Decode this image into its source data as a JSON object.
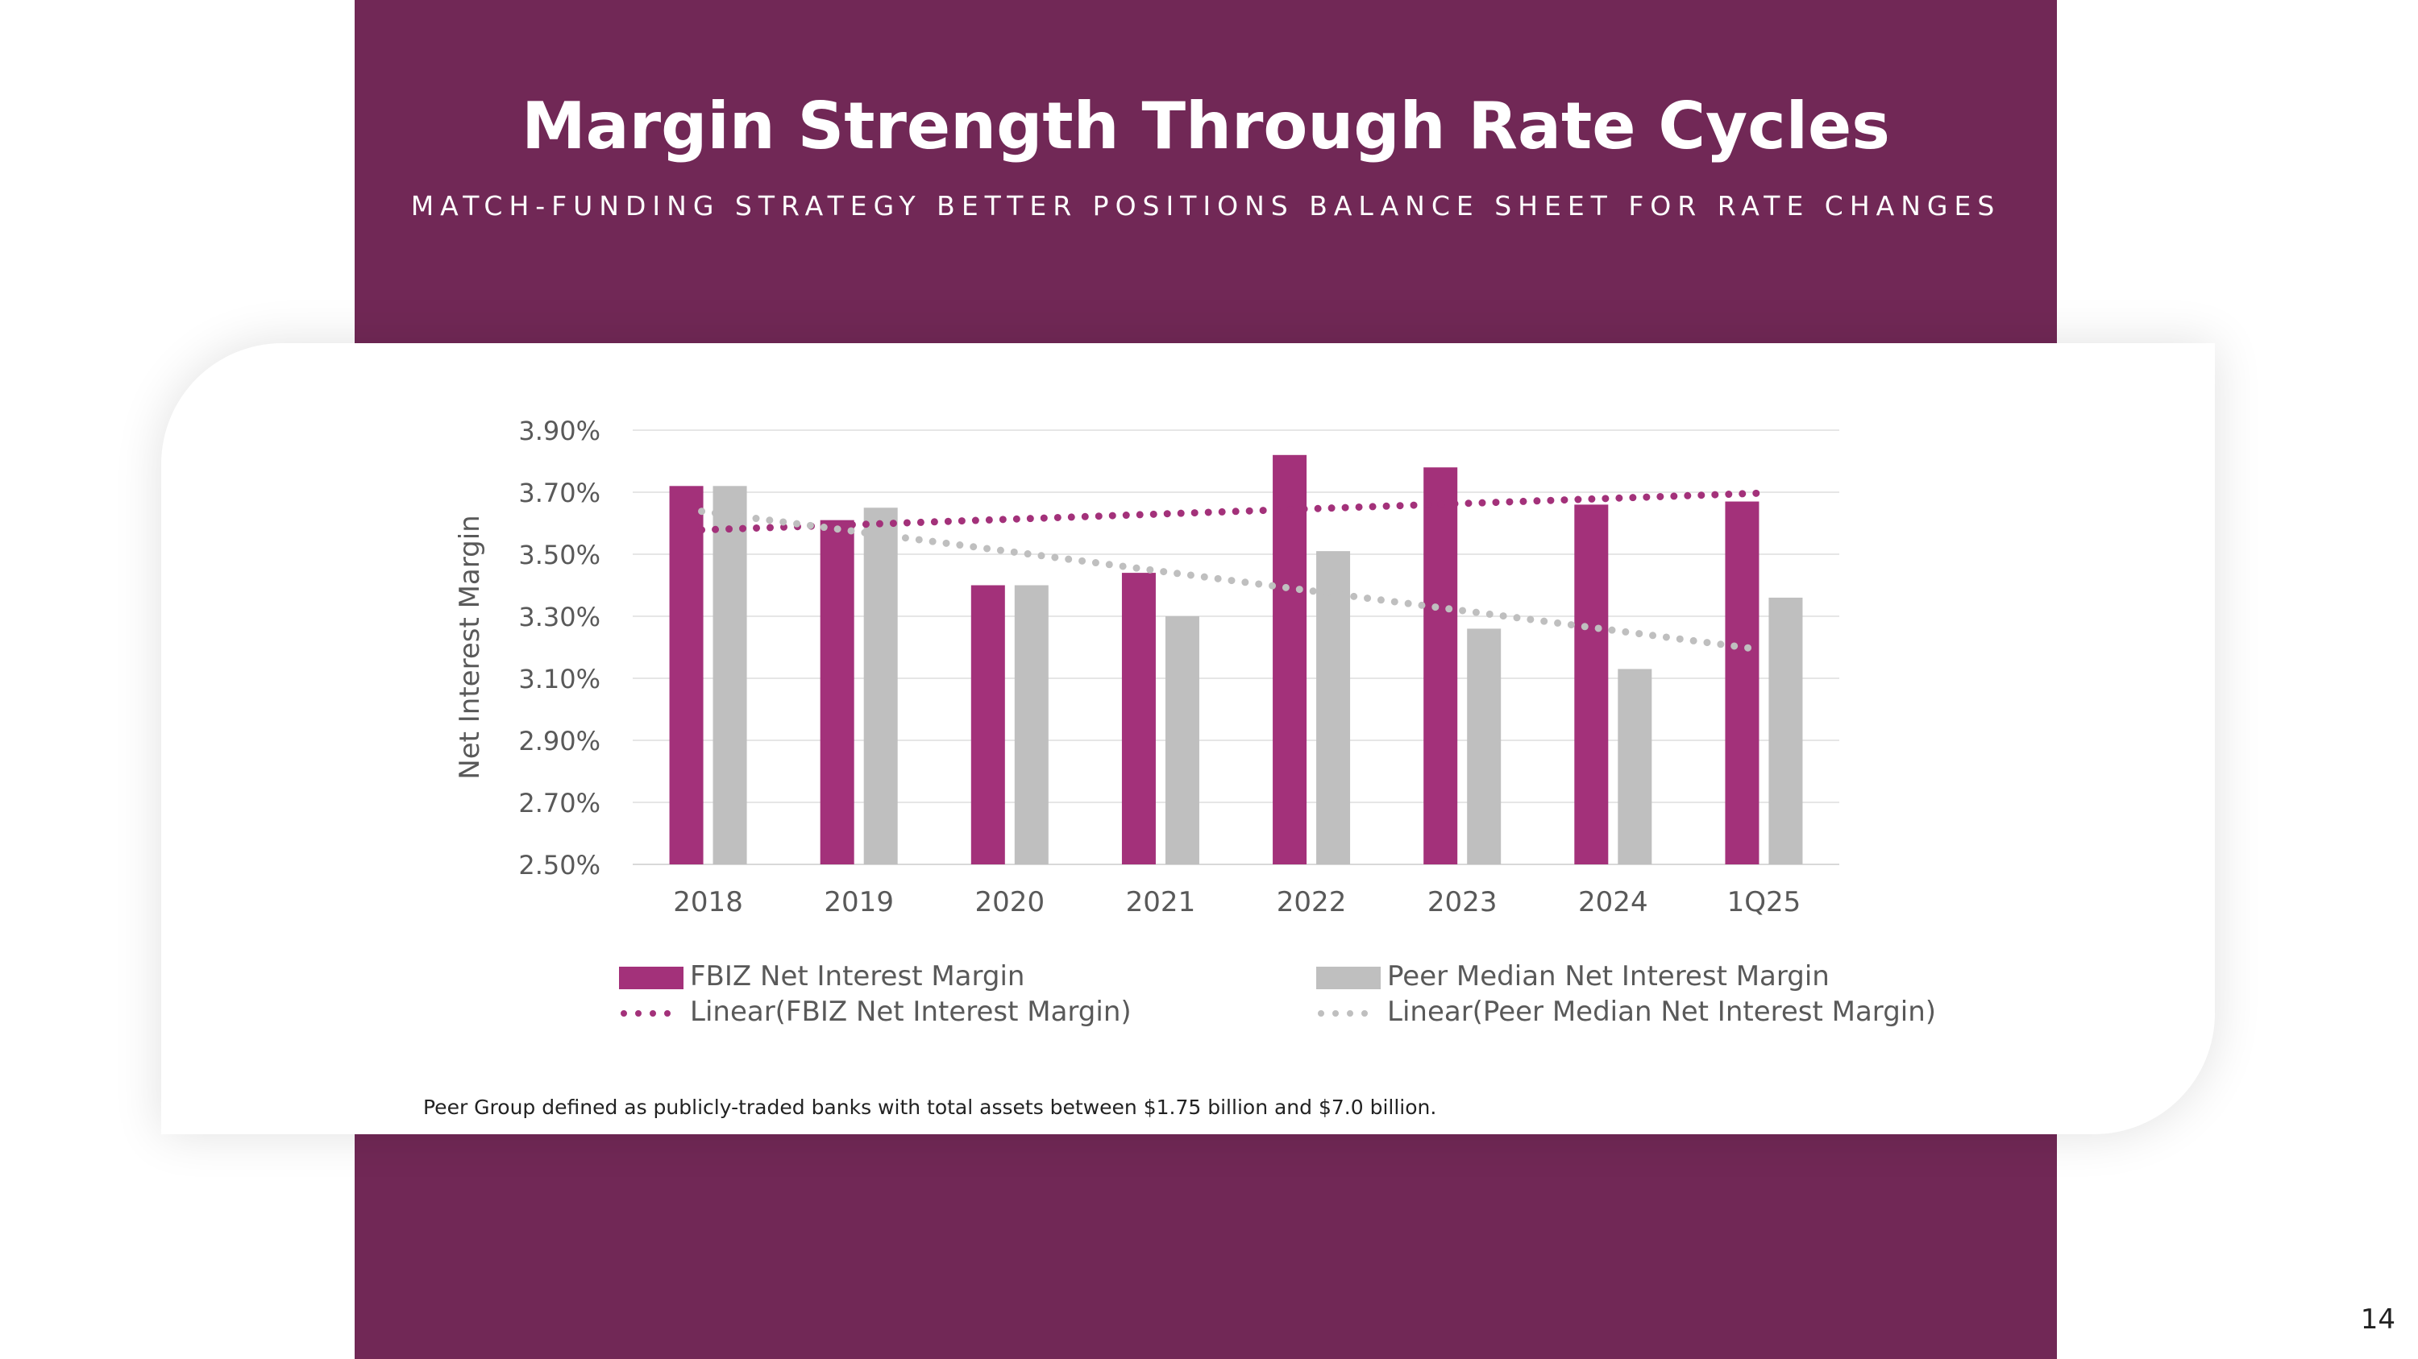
{
  "header": {
    "title": "Margin Strength Through Rate Cycles",
    "subtitle": "MATCH-FUNDING STRATEGY BETTER POSITIONS BALANCE SHEET FOR RATE CHANGES"
  },
  "colors": {
    "band": "#712856",
    "fbiz": "#A3317A",
    "peer": "#BFBFBF",
    "gridline": "#E6E6E6",
    "axis_text": "#595959"
  },
  "chart_data": {
    "type": "bar",
    "ylabel": "Net Interest Margin",
    "ylim": [
      2.5,
      3.9
    ],
    "yticks": [
      2.5,
      2.7,
      2.9,
      3.1,
      3.3,
      3.5,
      3.7,
      3.9
    ],
    "ytick_labels": [
      "2.50%",
      "2.70%",
      "2.90%",
      "3.10%",
      "3.30%",
      "3.50%",
      "3.70%",
      "3.90%"
    ],
    "categories": [
      "2018",
      "2019",
      "2020",
      "2021",
      "2022",
      "2023",
      "2024",
      "1Q25"
    ],
    "series": [
      {
        "name": "FBIZ Net Interest Margin",
        "values": [
          3.72,
          3.61,
          3.4,
          3.44,
          3.82,
          3.78,
          3.66,
          3.67
        ]
      },
      {
        "name": "Peer Median Net Interest Margin",
        "values": [
          3.72,
          3.65,
          3.4,
          3.3,
          3.51,
          3.26,
          3.13,
          3.36
        ]
      }
    ],
    "trendlines": [
      {
        "name": "Linear(FBIZ Net Interest Margin)",
        "of": "FBIZ Net Interest Margin"
      },
      {
        "name": "Linear(Peer Median Net Interest Margin)",
        "of": "Peer Median Net Interest Margin"
      }
    ],
    "grid": true,
    "legend": "bottom"
  },
  "footnote": "Peer Group defined as publicly-traded banks with total assets between $1.75 billion and $7.0 billion.",
  "page_number": "14"
}
